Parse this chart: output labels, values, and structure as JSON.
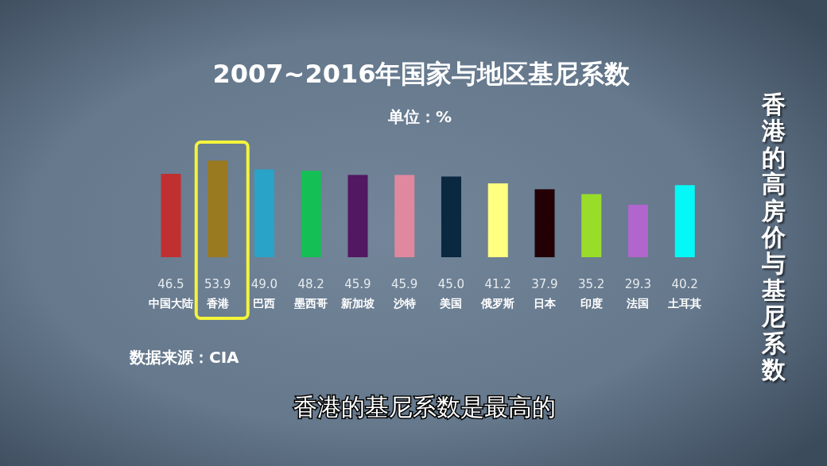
{
  "chart_data": {
    "type": "bar",
    "title": "2007~2016年国家与地区基尼系数",
    "subtitle": "单位：%",
    "categories": [
      "中国大陆",
      "香港",
      "巴西",
      "墨西哥",
      "新加坡",
      "沙特",
      "美国",
      "俄罗斯",
      "日本",
      "印度",
      "法国",
      "土耳其"
    ],
    "values": [
      46.5,
      53.9,
      49.0,
      48.2,
      45.9,
      45.9,
      45.0,
      41.2,
      37.9,
      35.2,
      29.3,
      40.2
    ],
    "value_labels": [
      "46.5",
      "53.9",
      "49.0",
      "48.2",
      "45.9",
      "45.9",
      "45.0",
      "41.2",
      "37.9",
      "35.2",
      "29.3",
      "40.2"
    ],
    "colors": [
      "#c03030",
      "#9a7a20",
      "#2aa3c8",
      "#14c055",
      "#521862",
      "#e088a0",
      "#0a2840",
      "#ffff80",
      "#220005",
      "#99dd2a",
      "#b066cc",
      "#05f8f8"
    ],
    "annotations": [
      "数据来源：CIA",
      "香港的高房价与基尼系数",
      "香港的基尼系数是最高的"
    ]
  }
}
